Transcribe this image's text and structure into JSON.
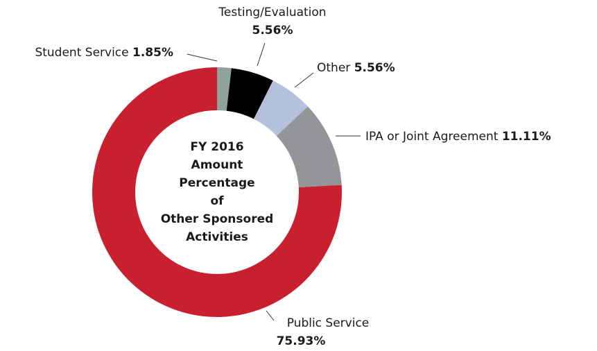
{
  "chart_data": {
    "type": "donut",
    "title": [
      "FY 2016",
      "Amount",
      "Percentage",
      "of",
      "Other Sponsored",
      "Activities"
    ],
    "categories": [
      "Student Service",
      "Testing/Evaluation",
      "Other",
      "IPA or Joint Agreement",
      "Public Service"
    ],
    "values": [
      1.85,
      5.56,
      5.56,
      11.11,
      75.93
    ],
    "value_labels": [
      "1.85%",
      "5.56%",
      "5.56%",
      "11.11%",
      "75.93%"
    ],
    "colors": [
      "#8fa39a",
      "#000000",
      "#b4c1dd",
      "#939598",
      "#c8202f"
    ]
  }
}
